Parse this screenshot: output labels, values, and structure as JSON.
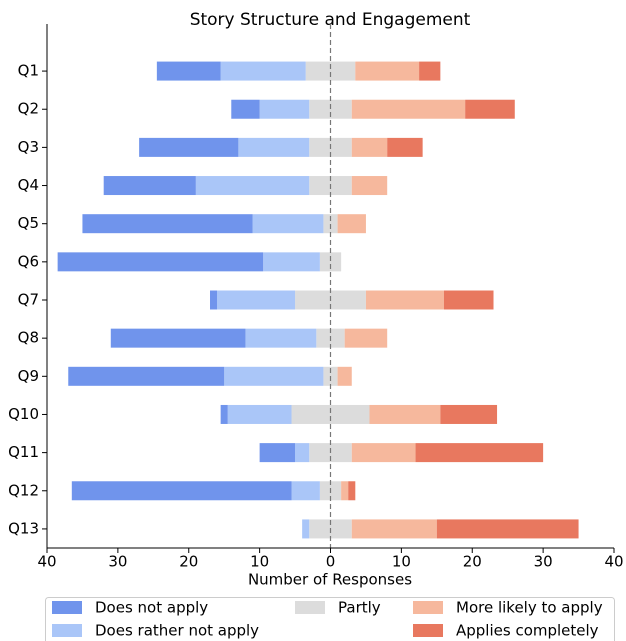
{
  "chart_data": {
    "type": "diverging_bar",
    "title": "Story Structure and Engagement",
    "xlabel": "Number of Responses",
    "categories": [
      "Q1",
      "Q2",
      "Q3",
      "Q4",
      "Q5",
      "Q6",
      "Q7",
      "Q8",
      "Q9",
      "Q10",
      "Q11",
      "Q12",
      "Q13"
    ],
    "series": [
      {
        "name": "Does not apply",
        "color": "#7094ec",
        "values": [
          9,
          4,
          14,
          13,
          24,
          29,
          1,
          19,
          22,
          1,
          5,
          31,
          0
        ]
      },
      {
        "name": "Does rather not apply",
        "color": "#aac6f8",
        "values": [
          12,
          7,
          10,
          16,
          10,
          8,
          11,
          10,
          14,
          9,
          2,
          4,
          1
        ]
      },
      {
        "name": "Partly",
        "color": "#dcdcdc",
        "values": [
          7,
          6,
          6,
          6,
          2,
          3,
          10,
          4,
          2,
          11,
          6,
          3,
          6
        ]
      },
      {
        "name": "More likely to apply",
        "color": "#f6b89d",
        "values": [
          9,
          16,
          5,
          5,
          4,
          0,
          11,
          6,
          2,
          10,
          9,
          1,
          12
        ]
      },
      {
        "name": "Applies completely",
        "color": "#e8785f",
        "values": [
          3,
          7,
          5,
          0,
          0,
          0,
          7,
          0,
          0,
          8,
          18,
          1,
          20
        ]
      }
    ],
    "xlim": [
      -40,
      40
    ],
    "xticks": [
      {
        "value": -40,
        "label": "40"
      },
      {
        "value": -30,
        "label": "30"
      },
      {
        "value": -20,
        "label": "20"
      },
      {
        "value": -10,
        "label": "10"
      },
      0,
      10,
      20,
      30,
      40
    ]
  }
}
